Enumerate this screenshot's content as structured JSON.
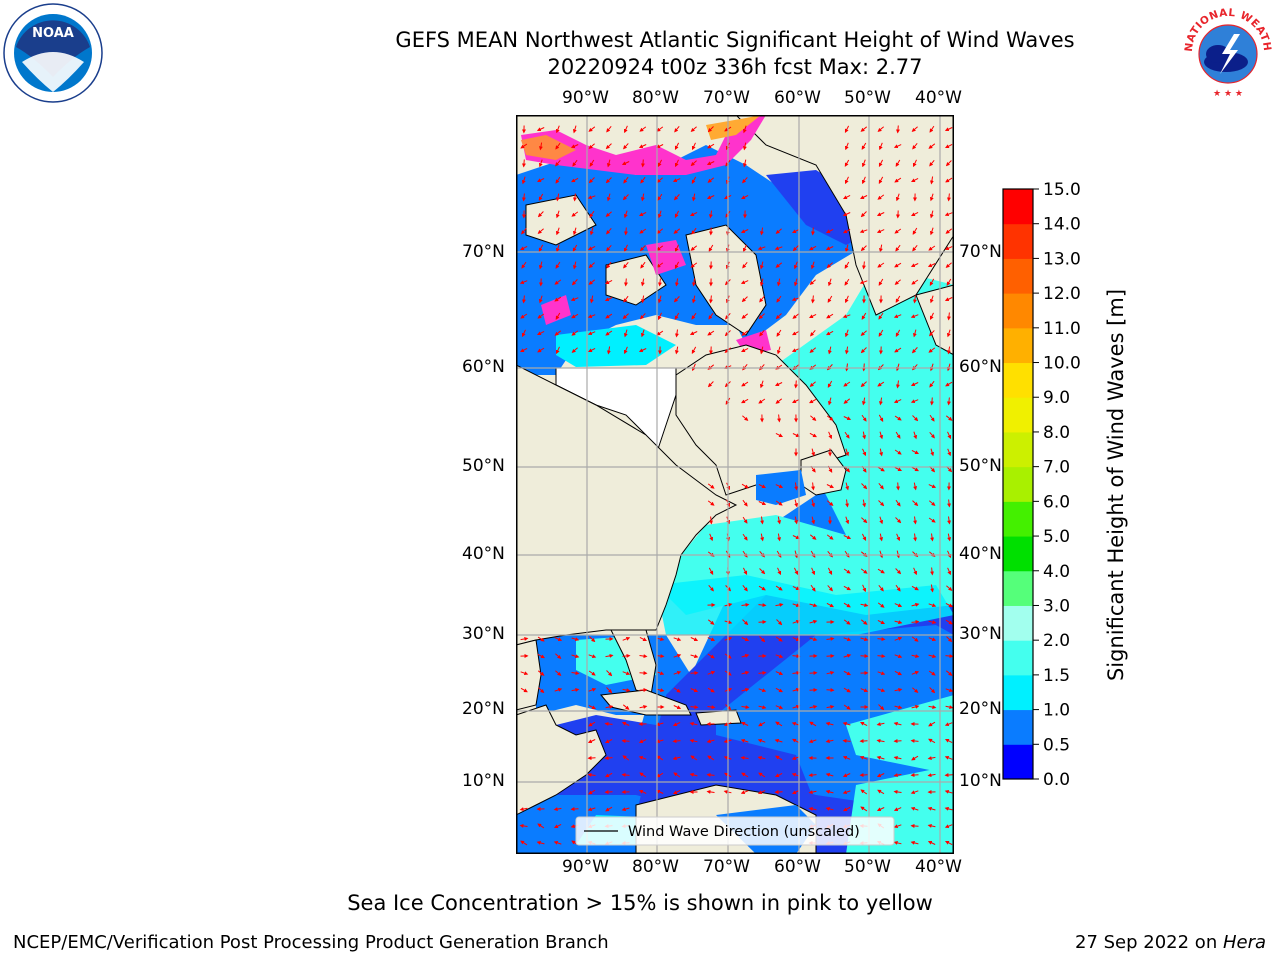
{
  "header": {
    "title_line1": "GEFS MEAN Northwest Atlantic Significant Height of Wind Waves",
    "title_line2": "20220924 t00z 336h fcst   Max: 2.77"
  },
  "logos": {
    "left_text": "NOAA",
    "right_text": "NATIONAL WEATHER SERVICE"
  },
  "map": {
    "lon_labels": [
      "90°W",
      "80°W",
      "70°W",
      "60°W",
      "50°W",
      "40°W"
    ],
    "lat_labels": [
      "70°N",
      "60°N",
      "50°N",
      "40°N",
      "30°N",
      "20°N",
      "10°N"
    ],
    "legend_label": "Wind Wave Direction (unscaled)"
  },
  "colorbar": {
    "title": "Significant Height of Wind Waves [m]",
    "ticks": [
      "0.0",
      "0.5",
      "1.0",
      "1.5",
      "2.0",
      "3.0",
      "4.0",
      "5.0",
      "6.0",
      "7.0",
      "8.0",
      "9.0",
      "10.0",
      "11.0",
      "12.0",
      "13.0",
      "14.0",
      "15.0"
    ],
    "colors": [
      "#0000ff",
      "#0a7cff",
      "#00f0ff",
      "#44ffee",
      "#a2ffee",
      "#55ff7a",
      "#00e000",
      "#44f000",
      "#a9f000",
      "#ccf000",
      "#f0f000",
      "#ffe000",
      "#ffb000",
      "#ff8800",
      "#ff6000",
      "#ff3300",
      "#ff0000"
    ]
  },
  "note": "Sea Ice Concentration > 15% is shown in pink to yellow",
  "footer": {
    "left": "NCEP/EMC/Verification Post Processing Product Generation Branch",
    "right_prefix": "27 Sep 2022 on ",
    "right_host": "Hera"
  }
}
